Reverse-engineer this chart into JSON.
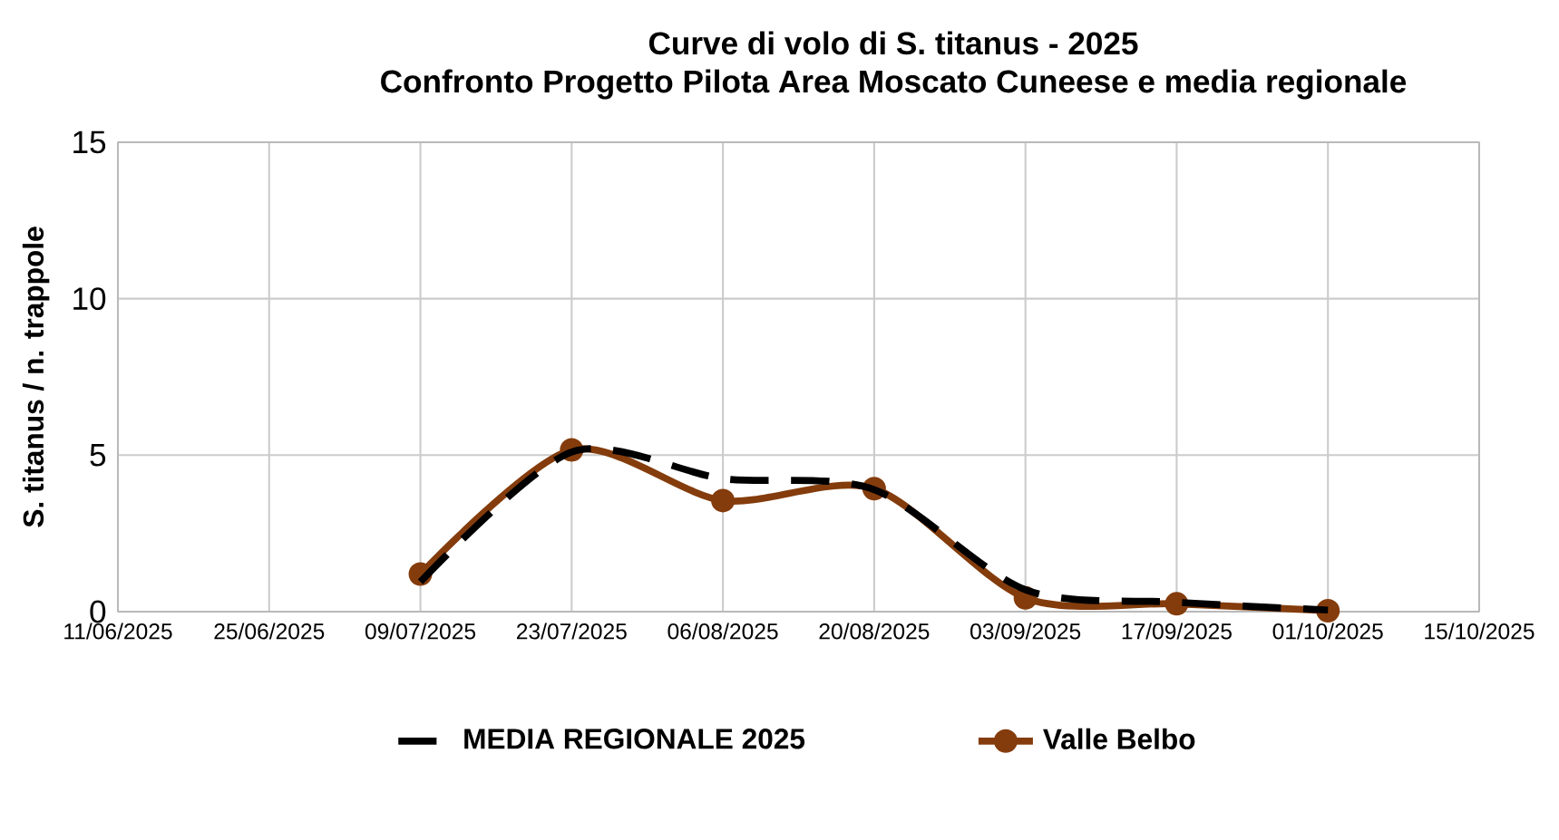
{
  "chart_data": {
    "type": "line",
    "title": "Curve di volo di S. titanus - 2025",
    "subtitle": "Confronto Progetto Pilota Area Moscato Cuneese e media regionale",
    "ylabel": "S. titanus / n. trappole",
    "x": [
      "2025-07-09",
      "2025-07-23",
      "2025-08-06",
      "2025-08-20",
      "2025-09-03",
      "2025-09-17",
      "2025-10-01"
    ],
    "series": [
      {
        "name": "MEDIA REGIONALE 2025",
        "color": "#000000",
        "line_style": "dashed",
        "marker": "none",
        "values": [
          0.95,
          5.1,
          4.25,
          3.9,
          0.7,
          0.3,
          0.05
        ]
      },
      {
        "name": "Valle Belbo",
        "color": "#843c0c",
        "line_style": "solid",
        "marker": "circle",
        "values": [
          1.2,
          5.17,
          3.55,
          3.93,
          0.44,
          0.25,
          0.03
        ]
      }
    ],
    "xlim": [
      "2025-06-11",
      "2025-10-15"
    ],
    "xticks": [
      {
        "value": "2025-06-11",
        "label": "11/06/2025"
      },
      {
        "value": "2025-06-25",
        "label": "25/06/2025"
      },
      {
        "value": "2025-07-09",
        "label": "09/07/2025"
      },
      {
        "value": "2025-07-23",
        "label": "23/07/2025"
      },
      {
        "value": "2025-08-06",
        "label": "06/08/2025"
      },
      {
        "value": "2025-08-20",
        "label": "20/08/2025"
      },
      {
        "value": "2025-09-03",
        "label": "03/09/2025"
      },
      {
        "value": "2025-09-17",
        "label": "17/09/2025"
      },
      {
        "value": "2025-10-01",
        "label": "01/10/2025"
      },
      {
        "value": "2025-10-15",
        "label": "15/10/2025"
      }
    ],
    "ylim": [
      0,
      15
    ],
    "yticks": [
      0,
      5,
      10,
      15
    ],
    "grid": true,
    "legend": "bottom"
  }
}
